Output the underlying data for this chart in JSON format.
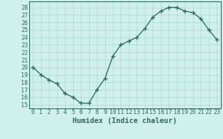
{
  "x": [
    0,
    1,
    2,
    3,
    4,
    5,
    6,
    7,
    8,
    9,
    10,
    11,
    12,
    13,
    14,
    15,
    16,
    17,
    18,
    19,
    20,
    21,
    22,
    23
  ],
  "y": [
    20.0,
    19.0,
    18.3,
    17.8,
    16.5,
    16.0,
    15.2,
    15.2,
    17.0,
    18.5,
    21.5,
    23.0,
    23.5,
    24.0,
    25.2,
    26.7,
    27.5,
    28.0,
    28.0,
    27.5,
    27.3,
    26.5,
    25.0,
    23.7
  ],
  "line_color": "#2e6b5e",
  "marker": "+",
  "marker_size": 4,
  "marker_edge_width": 1.0,
  "bg_color": "#cff0eb",
  "grid_color": "#a8d8d0",
  "xlabel": "Humidex (Indice chaleur)",
  "xlim": [
    -0.5,
    23.5
  ],
  "ylim": [
    14.5,
    28.8
  ],
  "yticks": [
    15,
    16,
    17,
    18,
    19,
    20,
    21,
    22,
    23,
    24,
    25,
    26,
    27,
    28
  ],
  "xticks": [
    0,
    1,
    2,
    3,
    4,
    5,
    6,
    7,
    8,
    9,
    10,
    11,
    12,
    13,
    14,
    15,
    16,
    17,
    18,
    19,
    20,
    21,
    22,
    23
  ],
  "tick_label_fontsize": 6.0,
  "xlabel_fontsize": 7.5,
  "line_width": 1.0,
  "spine_color": "#2e6b5e"
}
